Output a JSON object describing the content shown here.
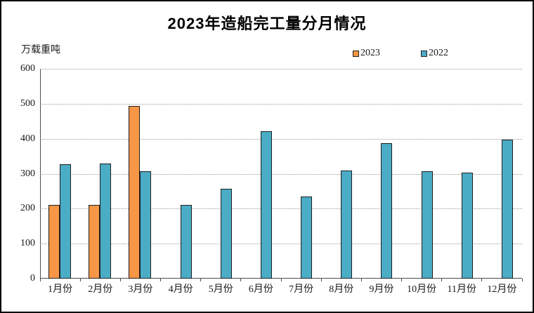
{
  "frame": {
    "background": "#FFFFFF",
    "border_color": "#000000"
  },
  "chart_data": {
    "type": "bar",
    "title": "2023年造船完工量分月情况",
    "unit_label": "万载重吨",
    "categories": [
      "1月份",
      "2月份",
      "3月份",
      "4月份",
      "5月份",
      "6月份",
      "7月份",
      "8月份",
      "9月份",
      "10月份",
      "11月份",
      "12月份"
    ],
    "series": [
      {
        "name": "2023",
        "color": "#F79646",
        "values": [
          211,
          211,
          494,
          null,
          null,
          null,
          null,
          null,
          null,
          null,
          null,
          null
        ]
      },
      {
        "name": "2022",
        "color": "#4BACC6",
        "values": [
          327,
          329,
          308,
          210,
          257,
          421,
          235,
          310,
          387,
          308,
          304,
          397
        ]
      }
    ],
    "xlabel": "",
    "ylabel": "万载重吨",
    "ylim": [
      0,
      600
    ],
    "yticks": [
      0,
      100,
      200,
      300,
      400,
      500,
      600
    ],
    "grid": "horizontal-dotted",
    "legend_position": "top-inside-right",
    "colors": {
      "bar_border": "#1F1F1F",
      "axis": "#4D4D4D",
      "gridline": "#999999",
      "text": "#1A1A1A",
      "title": "#000000"
    }
  }
}
